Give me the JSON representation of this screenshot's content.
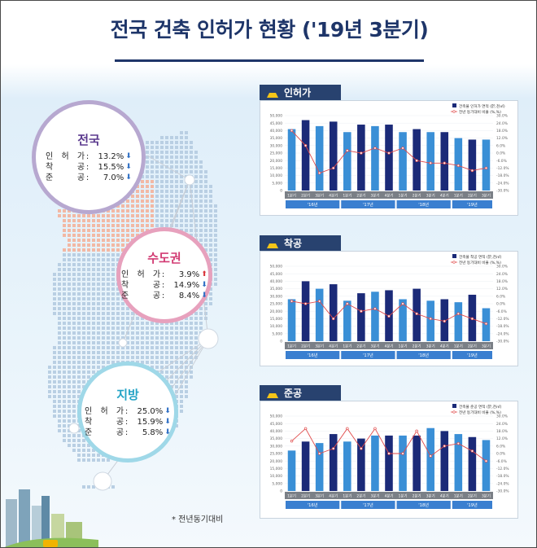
{
  "title": "전국 건축 인허가 현황 ('19년 3분기)",
  "footnote": "* 전년동기대비",
  "colors": {
    "navy": "#1b2a78",
    "light": "#3a8fd6",
    "line": "#e04a4a",
    "header": "#1e3569"
  },
  "regions": [
    {
      "name": "전국",
      "color": "#5b3a8e",
      "ring": "#b7a8d0",
      "stats": [
        {
          "label": "인허가",
          "value": "13.2%",
          "dir": "down"
        },
        {
          "label": "착공",
          "value": "15.5%",
          "dir": "down"
        },
        {
          "label": "준공",
          "value": "7.0%",
          "dir": "down"
        }
      ]
    },
    {
      "name": "수도권",
      "color": "#d23b73",
      "ring": "#e7a1bd",
      "stats": [
        {
          "label": "인허가",
          "value": "3.9%",
          "dir": "up"
        },
        {
          "label": "착공",
          "value": "14.9%",
          "dir": "down"
        },
        {
          "label": "준공",
          "value": "8.4%",
          "dir": "down"
        }
      ]
    },
    {
      "name": "지방",
      "color": "#23a3c6",
      "ring": "#9fd8e8",
      "stats": [
        {
          "label": "인허가",
          "value": "25.0%",
          "dir": "down"
        },
        {
          "label": "착공",
          "value": "15.9%",
          "dir": "down"
        },
        {
          "label": "준공",
          "value": "5.8%",
          "dir": "down"
        }
      ]
    }
  ],
  "chart_data": [
    {
      "type": "bar",
      "title": "인허가",
      "legend_bar": "건축물 인허가 면적 (於,천㎡)",
      "legend_line": "전년 동기대비 비율 (%,%)",
      "categories": [
        "1분기",
        "2분기",
        "3분기",
        "4분기",
        "1분기",
        "2분기",
        "3분기",
        "4분기",
        "1분기",
        "2분기",
        "3분기",
        "4분기",
        "1분기",
        "2분기",
        "3분기"
      ],
      "years": [
        "'16년",
        "'17년",
        "'18년",
        "'19년"
      ],
      "left_ticks": [
        "50,000",
        "45,000",
        "40,000",
        "35,000",
        "30,000",
        "25,000",
        "20,000",
        "15,000",
        "10,000",
        "5,000",
        "0"
      ],
      "right_ticks": [
        "30.0%",
        "24.0%",
        "18.0%",
        "12.0%",
        "6.0%",
        "0.0%",
        "-6.0%",
        "-12.0%",
        "-18.0%",
        "-24.0%",
        "-30.0%"
      ],
      "ylim": [
        0,
        50000
      ],
      "y2lim": [
        -30,
        30
      ],
      "bars": [
        41000,
        47000,
        43000,
        46000,
        39000,
        44000,
        43000,
        44000,
        39000,
        41000,
        39000,
        39000,
        35000,
        34000,
        34000
      ],
      "line": [
        18,
        6,
        -16,
        -12,
        2,
        0,
        4,
        0,
        4,
        -6,
        -8,
        -8,
        -10,
        -14,
        -12
      ]
    },
    {
      "type": "bar",
      "title": "착공",
      "legend_bar": "건축물 착공 면적 (於,천㎡)",
      "legend_line": "전년 동기대비 비율 (%,%)",
      "categories": [
        "1분기",
        "2분기",
        "3분기",
        "4분기",
        "1분기",
        "2분기",
        "3분기",
        "4분기",
        "1분기",
        "2분기",
        "3분기",
        "4분기",
        "1분기",
        "2분기",
        "3분기"
      ],
      "years": [
        "'16년",
        "'17년",
        "'18년",
        "'19년"
      ],
      "left_ticks": [
        "50,000",
        "45,000",
        "40,000",
        "35,000",
        "30,000",
        "25,000",
        "20,000",
        "15,000",
        "10,000",
        "5,000",
        "0"
      ],
      "right_ticks": [
        "30.0%",
        "24.0%",
        "18.0%",
        "12.0%",
        "6.0%",
        "0.0%",
        "-6.0%",
        "-12.0%",
        "-18.0%",
        "-24.0%",
        "-30.0%"
      ],
      "ylim": [
        0,
        50000
      ],
      "y2lim": [
        -30,
        30
      ],
      "bars": [
        28000,
        40000,
        35000,
        38000,
        27000,
        32000,
        33000,
        34000,
        28000,
        35000,
        27000,
        28000,
        26000,
        31000,
        22000
      ],
      "line": [
        2,
        0,
        2,
        -12,
        0,
        -6,
        -4,
        -10,
        0,
        -8,
        -12,
        -14,
        -8,
        -12,
        -16
      ]
    },
    {
      "type": "bar",
      "title": "준공",
      "legend_bar": "건축물 준공 면적 (於,천㎡)",
      "legend_line": "전년 동기대비 비율 (%,%)",
      "categories": [
        "1분기",
        "2분기",
        "3분기",
        "4분기",
        "1분기",
        "2분기",
        "3분기",
        "4분기",
        "1분기",
        "2분기",
        "3분기",
        "4분기",
        "1분기",
        "2분기",
        "3분기"
      ],
      "years": [
        "'16년",
        "'17년",
        "'18년",
        "'19년"
      ],
      "left_ticks": [
        "50,000",
        "45,000",
        "40,000",
        "35,000",
        "30,000",
        "25,000",
        "20,000",
        "15,000",
        "10,000",
        "5,000",
        "0"
      ],
      "right_ticks": [
        "30.0%",
        "24.0%",
        "18.0%",
        "12.0%",
        "6.0%",
        "0.0%",
        "-6.0%",
        "-12.0%",
        "-18.0%",
        "-24.0%",
        "-30.0%"
      ],
      "ylim": [
        0,
        50000
      ],
      "y2lim": [
        -30,
        30
      ],
      "bars": [
        27000,
        33000,
        32000,
        38000,
        33000,
        35000,
        37000,
        37000,
        37000,
        37000,
        42000,
        40000,
        38000,
        36000,
        34000
      ],
      "line": [
        10,
        20,
        0,
        4,
        20,
        4,
        20,
        0,
        0,
        18,
        -2,
        6,
        8,
        2,
        -6
      ]
    }
  ]
}
